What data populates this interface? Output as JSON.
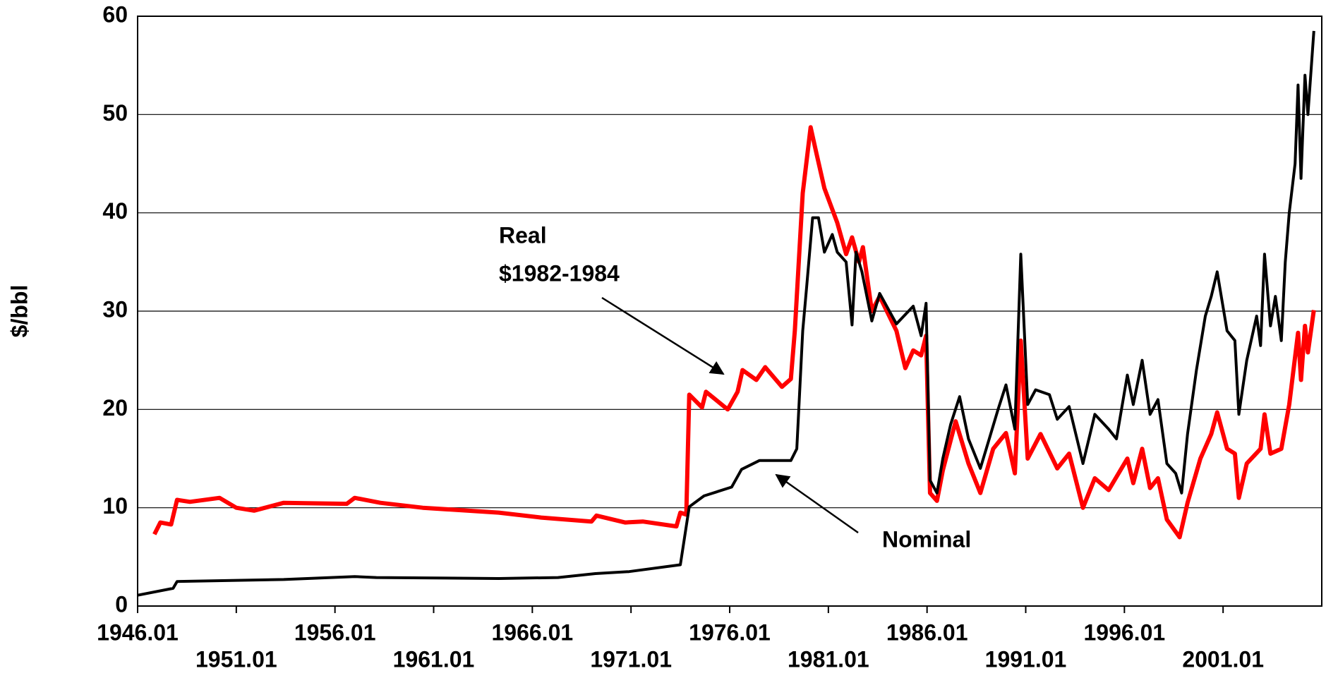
{
  "chart_data": {
    "type": "line",
    "y_label": "$/bbl",
    "xlim": [
      1946,
      2006
    ],
    "xticks": [
      {
        "value": 1946,
        "label": "1946.01"
      },
      {
        "value": 1951,
        "label": "1951.01"
      },
      {
        "value": 1956,
        "label": "1956.01"
      },
      {
        "value": 1961,
        "label": "1961.01"
      },
      {
        "value": 1966,
        "label": "1966.01"
      },
      {
        "value": 1971,
        "label": "1971.01"
      },
      {
        "value": 1976,
        "label": "1976.01"
      },
      {
        "value": 1981,
        "label": "1981.01"
      },
      {
        "value": 1986,
        "label": "1986.01"
      },
      {
        "value": 1991,
        "label": "1991.01"
      },
      {
        "value": 1996,
        "label": "1996.01"
      },
      {
        "value": 2001,
        "label": "2001.01"
      }
    ],
    "ylim": [
      0,
      60
    ],
    "yticks": [
      0,
      10,
      20,
      30,
      40,
      50,
      60
    ],
    "grid": true,
    "annotations": [
      {
        "lines": [
          "Real",
          "$1982-1984"
        ]
      },
      {
        "lines": [
          "Nominal"
        ]
      }
    ],
    "series": [
      {
        "name": "Real",
        "color": "#ff0000",
        "x": [
          1946.85,
          1947.15,
          1947.7,
          1948.0,
          1948.65,
          1950.15,
          1951.0,
          1951.9,
          1953.4,
          1956.6,
          1957.0,
          1958.3,
          1960.45,
          1964.3,
          1966.45,
          1969.0,
          1969.25,
          1970.7,
          1971.6,
          1973.3,
          1973.5,
          1973.8,
          1973.95,
          1974.6,
          1974.8,
          1975.9,
          1976.4,
          1976.65,
          1977.35,
          1977.8,
          1978.65,
          1979.1,
          1979.3,
          1979.7,
          1980.1,
          1980.4,
          1980.8,
          1981.45,
          1981.9,
          1982.2,
          1982.55,
          1982.75,
          1983.2,
          1983.6,
          1984.45,
          1984.9,
          1985.3,
          1985.7,
          1985.95,
          1986.15,
          1986.5,
          1986.8,
          1987.45,
          1988.1,
          1988.7,
          1989.35,
          1990.0,
          1990.45,
          1990.75,
          1991.1,
          1991.75,
          1992.6,
          1993.2,
          1993.9,
          1994.5,
          1995.2,
          1996.15,
          1996.45,
          1996.9,
          1997.3,
          1997.7,
          1998.15,
          1998.8,
          1999.2,
          1999.85,
          2000.4,
          2000.7,
          2001.2,
          2001.6,
          2001.8,
          2002.2,
          2002.9,
          2003.1,
          2003.4,
          2003.95,
          2004.35,
          2004.8,
          2004.95,
          2005.15,
          2005.3,
          2005.6
        ],
        "values": [
          7.3,
          8.5,
          8.3,
          10.8,
          10.6,
          11.0,
          10.0,
          9.7,
          10.5,
          10.4,
          11.0,
          10.5,
          10.0,
          9.5,
          9.0,
          8.6,
          9.2,
          8.5,
          8.6,
          8.1,
          9.5,
          9.3,
          21.5,
          20.2,
          21.8,
          20.0,
          21.8,
          24.0,
          23.0,
          24.3,
          22.3,
          23.1,
          28.0,
          42.0,
          48.7,
          46.0,
          42.5,
          39.0,
          35.8,
          37.5,
          35.0,
          36.5,
          30.0,
          31.5,
          28.0,
          24.2,
          26.0,
          25.5,
          27.5,
          11.5,
          10.7,
          13.8,
          18.8,
          14.5,
          11.5,
          16.0,
          17.6,
          13.5,
          27.0,
          15.0,
          17.5,
          14.0,
          15.5,
          10.0,
          13.0,
          11.8,
          15.0,
          12.5,
          16.0,
          12.0,
          13.0,
          8.8,
          7.0,
          10.5,
          15.0,
          17.5,
          19.7,
          16.0,
          15.5,
          11.0,
          14.5,
          16.0,
          19.5,
          15.5,
          16.0,
          20.5,
          27.8,
          23.0,
          28.5,
          25.8,
          30.1
        ]
      },
      {
        "name": "Nominal",
        "color": "#000000",
        "x": [
          1946.0,
          1947.8,
          1948.0,
          1953.4,
          1957.0,
          1958.1,
          1964.3,
          1967.3,
          1969.2,
          1970.9,
          1973.5,
          1973.95,
          1974.7,
          1976.1,
          1976.6,
          1977.5,
          1979.1,
          1979.4,
          1979.7,
          1979.9,
          1980.2,
          1980.5,
          1980.8,
          1981.2,
          1981.45,
          1981.9,
          1982.2,
          1982.4,
          1982.7,
          1983.2,
          1983.6,
          1984.45,
          1985.3,
          1985.7,
          1985.95,
          1986.15,
          1986.5,
          1986.8,
          1987.2,
          1987.65,
          1988.1,
          1988.7,
          1989.15,
          1989.6,
          1990.0,
          1990.45,
          1990.75,
          1991.1,
          1991.5,
          1992.2,
          1992.6,
          1993.2,
          1993.9,
          1994.5,
          1995.2,
          1995.6,
          1996.15,
          1996.45,
          1996.9,
          1997.3,
          1997.7,
          1998.15,
          1998.6,
          1998.9,
          1999.2,
          1999.65,
          2000.1,
          2000.4,
          2000.7,
          2001.2,
          2001.6,
          2001.8,
          2002.2,
          2002.7,
          2002.9,
          2003.1,
          2003.4,
          2003.65,
          2003.95,
          2004.15,
          2004.35,
          2004.65,
          2004.8,
          2004.95,
          2005.15,
          2005.3,
          2005.6
        ],
        "values": [
          1.1,
          1.8,
          2.5,
          2.7,
          3.0,
          2.9,
          2.8,
          2.9,
          3.3,
          3.5,
          4.2,
          10.1,
          11.2,
          12.1,
          13.9,
          14.8,
          14.8,
          16.0,
          28.0,
          32.5,
          39.5,
          39.5,
          36.0,
          37.8,
          36.0,
          35.0,
          28.6,
          36.0,
          34.0,
          29.0,
          31.8,
          28.7,
          30.5,
          27.5,
          30.8,
          12.8,
          11.5,
          15.0,
          18.5,
          21.3,
          17.0,
          14.0,
          17.0,
          20.0,
          22.5,
          18.0,
          35.8,
          20.5,
          22.0,
          21.5,
          19.0,
          20.3,
          14.5,
          19.5,
          18.0,
          17.0,
          23.5,
          20.5,
          25.0,
          19.5,
          21.0,
          14.5,
          13.5,
          11.5,
          17.5,
          24.0,
          29.5,
          31.5,
          34.0,
          28.0,
          27.0,
          19.5,
          25.0,
          29.5,
          26.5,
          35.8,
          28.5,
          31.5,
          27.0,
          35.0,
          40.0,
          45.0,
          53.0,
          43.5,
          54.0,
          50.0,
          58.5
        ]
      }
    ]
  }
}
